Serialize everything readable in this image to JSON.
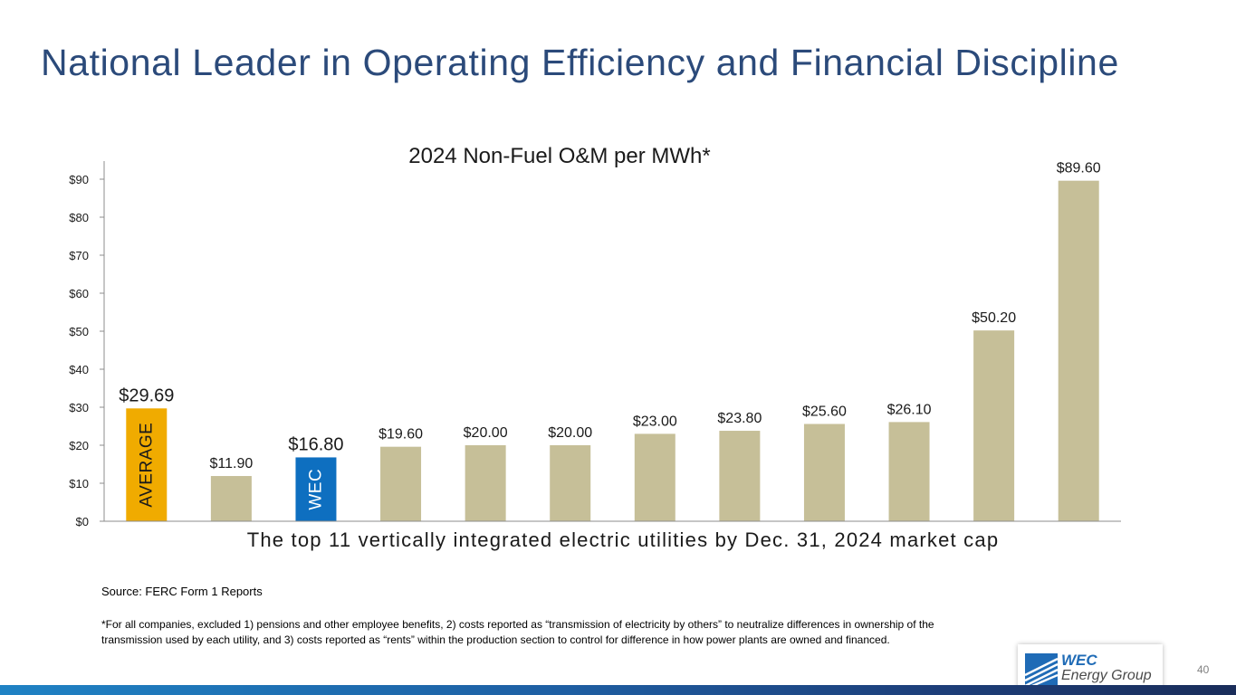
{
  "slide": {
    "title": "National Leader in Operating Efficiency and Financial Discipline",
    "source": "Source: FERC Form 1 Reports",
    "footnote": "*For all companies, excluded 1) pensions and other employee benefits, 2) costs reported as “transmission of electricity by others” to neutralize differences in ownership of the transmission used by each utility, and 3) costs reported as “rents” within the production section to control for difference in how power plants are owned and financed.",
    "page_number": "40"
  },
  "logo": {
    "line1": "WEC",
    "line2": "Energy Group",
    "icon": "wec-logo-icon"
  },
  "colors": {
    "title": "#2b4a7a",
    "bar_default": "#c6bf98",
    "bar_average": "#f0ab00",
    "bar_wec": "#0e6fc0",
    "axis": "#8c8c8c"
  },
  "chart_data": {
    "type": "bar",
    "title": "2024 Non-Fuel O&M per MWh*",
    "xlabel": "The top 11 vertically integrated electric utilities by Dec. 31, 2024 market cap",
    "ylabel": "",
    "ylim": [
      0,
      95
    ],
    "yticks": [
      0,
      10,
      20,
      30,
      40,
      50,
      60,
      70,
      80,
      90
    ],
    "ytick_labels": [
      "$0",
      "$10",
      "$20",
      "$30",
      "$40",
      "$50",
      "$60",
      "$70",
      "$80",
      "$90"
    ],
    "grid": false,
    "bars": [
      {
        "value": 29.69,
        "label": "$29.69",
        "bar_text": "AVERAGE",
        "highlight": "average"
      },
      {
        "value": 11.9,
        "label": "$11.90"
      },
      {
        "value": 16.8,
        "label": "$16.80",
        "bar_text": "WEC",
        "highlight": "wec"
      },
      {
        "value": 19.6,
        "label": "$19.60"
      },
      {
        "value": 20.0,
        "label": "$20.00"
      },
      {
        "value": 20.0,
        "label": "$20.00"
      },
      {
        "value": 23.0,
        "label": "$23.00"
      },
      {
        "value": 23.8,
        "label": "$23.80"
      },
      {
        "value": 25.6,
        "label": "$25.60"
      },
      {
        "value": 26.1,
        "label": "$26.10"
      },
      {
        "value": 50.2,
        "label": "$50.20"
      },
      {
        "value": 89.6,
        "label": "$89.60"
      }
    ]
  }
}
